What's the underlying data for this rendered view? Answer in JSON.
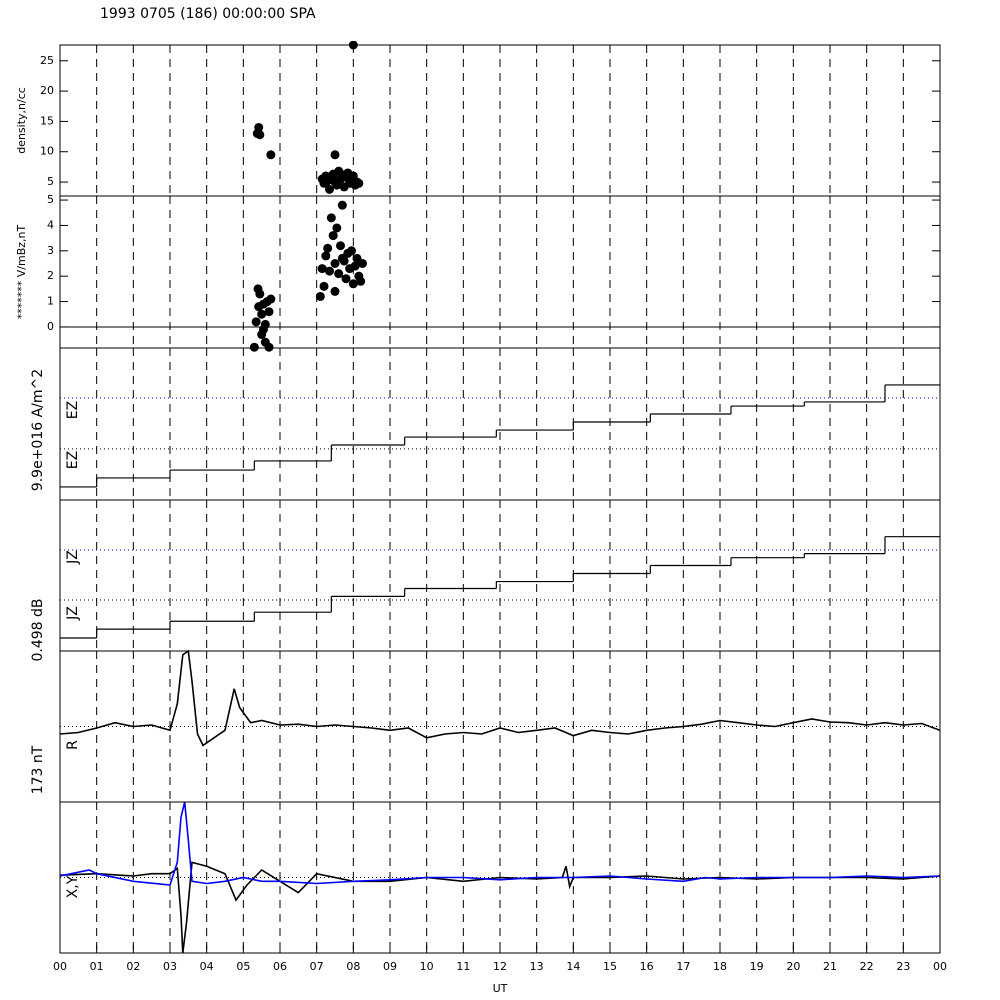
{
  "chart_data": [
    {
      "type": "scatter",
      "title": "1993 0705 (186) 00:00:00 SPA",
      "ylabel": "density,n/cc",
      "xlim": [
        0,
        24
      ],
      "ylim": [
        2.7,
        27.6
      ],
      "yticks": [
        5,
        10,
        15,
        20,
        25
      ],
      "color": "#000000",
      "x": [
        5.38,
        5.42,
        5.45,
        5.75,
        7.5,
        7.15,
        7.2,
        7.25,
        7.3,
        7.35,
        7.4,
        7.45,
        7.5,
        7.55,
        7.6,
        7.65,
        7.7,
        7.75,
        7.8,
        7.85,
        7.9,
        7.95,
        8.0,
        8.05,
        8.1,
        8.15,
        8.0
      ],
      "values": [
        13,
        14,
        12.8,
        9.5,
        9.5,
        5.5,
        4.8,
        6,
        5.2,
        3.8,
        5.7,
        6.3,
        5,
        4.5,
        6.8,
        5.5,
        6.2,
        4.2,
        5.8,
        6.5,
        4.8,
        5.3,
        6,
        4.5,
        5,
        4.8,
        27.6
      ]
    },
    {
      "type": "scatter",
      "ylabel": "******* V/mBz,nT",
      "xlim": [
        0,
        24
      ],
      "ylim": [
        -0.83,
        5.16
      ],
      "yticks": [
        0,
        1,
        2,
        3,
        4,
        5
      ],
      "color": "#000000",
      "reference_lines": [
        {
          "value": 0,
          "color": "#000000",
          "style": "solid"
        }
      ],
      "x": [
        5.3,
        5.35,
        5.4,
        5.42,
        5.45,
        5.5,
        5.5,
        5.55,
        5.6,
        5.6,
        5.65,
        5.7,
        5.7,
        5.75,
        5.55,
        7.1,
        7.15,
        7.2,
        7.25,
        7.3,
        7.35,
        7.4,
        7.45,
        7.5,
        7.55,
        7.6,
        7.65,
        7.7,
        7.75,
        7.8,
        7.85,
        7.9,
        7.95,
        8.0,
        8.05,
        8.1,
        8.15,
        8.2,
        8.25,
        7.5,
        7.7
      ],
      "values": [
        -0.8,
        0.2,
        1.5,
        0.8,
        1.3,
        0.5,
        -0.3,
        0.9,
        0.1,
        -0.6,
        1.0,
        -0.8,
        0.6,
        1.1,
        -0.1,
        1.2,
        2.3,
        1.6,
        2.8,
        3.1,
        2.2,
        4.3,
        3.6,
        2.5,
        3.9,
        2.1,
        3.2,
        4.8,
        2.6,
        1.9,
        2.9,
        2.3,
        3.0,
        1.7,
        2.4,
        2.7,
        2.0,
        1.8,
        2.5,
        1.4,
        2.7
      ]
    },
    {
      "type": "step",
      "scale_label": "9.9e+016 A/m^2",
      "annotations": [
        "EZ",
        "EZ"
      ],
      "xlim": [
        0,
        24
      ],
      "ylim": [
        0,
        100
      ],
      "color": "#000000",
      "reference_lines": [
        {
          "value": 67.1,
          "color": "#0000cc",
          "style": "dotted"
        },
        {
          "value": 33.6,
          "color": "#000000",
          "style": "dotted"
        }
      ],
      "x": [
        0,
        1,
        3,
        5.3,
        7.4,
        9.4,
        11.9,
        14,
        16.1,
        18.3,
        20.3,
        22.5
      ],
      "values": [
        8.6,
        14.5,
        19.7,
        25.7,
        36.2,
        41.4,
        46,
        51.3,
        56.6,
        61.8,
        64.5,
        75.7
      ]
    },
    {
      "type": "step",
      "scale_label": "0.498 dB",
      "annotations": [
        "JZ",
        "JZ"
      ],
      "xlim": [
        0,
        24
      ],
      "ylim": [
        0,
        100
      ],
      "color": "#000000",
      "reference_lines": [
        {
          "value": 66.9,
          "color": "#0000cc",
          "style": "dotted"
        },
        {
          "value": 33.8,
          "color": "#000000",
          "style": "dotted"
        }
      ],
      "x": [
        0,
        1,
        3,
        5.3,
        7.4,
        9.4,
        11.9,
        14,
        16.1,
        18.3,
        20.3,
        22.5
      ],
      "values": [
        8.6,
        14.5,
        19.7,
        25.7,
        36.2,
        41.4,
        46,
        51.3,
        56.6,
        61.8,
        64.5,
        75.7
      ]
    },
    {
      "type": "line",
      "scale_label": "173 nT",
      "annotations": [
        "R"
      ],
      "xlim": [
        0,
        24
      ],
      "ylim": [
        -1,
        1
      ],
      "reference_lines": [
        {
          "value": 0,
          "color": "#000000",
          "style": "dotted"
        }
      ],
      "series": [
        {
          "color": "#000000",
          "x": [
            0,
            0.5,
            1,
            1.5,
            2,
            2.5,
            3,
            3.2,
            3.35,
            3.5,
            3.6,
            3.75,
            3.9,
            4.2,
            4.5,
            4.75,
            4.9,
            5.2,
            5.5,
            6,
            6.5,
            7,
            7.5,
            8,
            8.5,
            9,
            9.5,
            10,
            10.5,
            11,
            11.5,
            12,
            12.5,
            13,
            13.5,
            14,
            14.5,
            15,
            15.5,
            16,
            16.5,
            17,
            17.5,
            18,
            18.5,
            19,
            19.5,
            20,
            20.5,
            21,
            21.5,
            22,
            22.5,
            23,
            23.5,
            24
          ],
          "values": [
            -0.1,
            -0.08,
            -0.02,
            0.05,
            0.0,
            0.02,
            -0.05,
            0.3,
            0.95,
            1.0,
            0.6,
            -0.1,
            -0.25,
            -0.15,
            -0.05,
            0.5,
            0.25,
            0.05,
            0.08,
            0.02,
            0.03,
            0.0,
            0.02,
            0.0,
            -0.02,
            -0.05,
            -0.02,
            -0.15,
            -0.1,
            -0.08,
            -0.1,
            -0.02,
            -0.08,
            -0.05,
            -0.02,
            -0.12,
            -0.05,
            -0.08,
            -0.1,
            -0.05,
            -0.02,
            0.0,
            0.03,
            0.08,
            0.05,
            0.02,
            0.0,
            0.05,
            0.1,
            0.06,
            0.05,
            0.02,
            0.05,
            0.02,
            0.04,
            -0.05
          ]
        }
      ]
    },
    {
      "type": "line",
      "annotations": [
        "X,Y"
      ],
      "xlabel": "UT",
      "xlim": [
        0,
        24
      ],
      "ylim": [
        -1,
        1
      ],
      "xticks": [
        {
          "value": 0,
          "label": "00"
        },
        {
          "value": 1,
          "label": "01"
        },
        {
          "value": 2,
          "label": "02"
        },
        {
          "value": 3,
          "label": "03"
        },
        {
          "value": 4,
          "label": "04"
        },
        {
          "value": 5,
          "label": "05"
        },
        {
          "value": 6,
          "label": "06"
        },
        {
          "value": 7,
          "label": "07"
        },
        {
          "value": 8,
          "label": "08"
        },
        {
          "value": 9,
          "label": "09"
        },
        10,
        11,
        12,
        13,
        14,
        15,
        16,
        17,
        18,
        19,
        20,
        21,
        22,
        23,
        {
          "value": 24,
          "label": "00"
        }
      ],
      "reference_lines": [
        {
          "value": 0,
          "color": "#000000",
          "style": "dotted"
        }
      ],
      "series": [
        {
          "color": "#000000",
          "x": [
            0,
            1,
            2,
            2.5,
            3,
            3.2,
            3.3,
            3.35,
            3.45,
            3.6,
            4,
            4.5,
            4.8,
            5.1,
            5.5,
            6,
            6.5,
            7,
            8,
            9,
            10,
            11,
            12,
            13,
            13.7,
            13.8,
            13.9,
            14,
            15,
            16,
            17,
            18,
            19,
            20,
            21,
            22,
            23,
            24
          ],
          "values": [
            0.03,
            0.05,
            0.02,
            0.05,
            0.05,
            0.12,
            -0.5,
            -1.0,
            -0.6,
            0.2,
            0.15,
            0.05,
            -0.3,
            -0.1,
            0.1,
            -0.05,
            -0.2,
            0.05,
            -0.05,
            -0.05,
            0.0,
            -0.05,
            0.0,
            -0.02,
            0.0,
            0.15,
            -0.12,
            0.0,
            0.0,
            0.02,
            -0.02,
            0.0,
            -0.02,
            0.0,
            0.0,
            0.0,
            -0.02,
            0.02
          ]
        },
        {
          "color": "#0000ff",
          "x": [
            0,
            0.8,
            1,
            2,
            3,
            3.2,
            3.3,
            3.4,
            3.5,
            3.6,
            4,
            4.5,
            5,
            5.5,
            6,
            7,
            8,
            9,
            10,
            11,
            12,
            13,
            14,
            15,
            16,
            17,
            17.6,
            18,
            19,
            20,
            21,
            22,
            23,
            24
          ],
          "values": [
            0.02,
            0.1,
            0.05,
            -0.05,
            -0.1,
            0.2,
            0.8,
            1.0,
            0.5,
            -0.05,
            -0.08,
            -0.05,
            0.0,
            -0.05,
            -0.05,
            -0.08,
            -0.05,
            -0.03,
            0.0,
            0.0,
            -0.03,
            0.0,
            0.0,
            0.02,
            -0.02,
            -0.05,
            0.0,
            -0.02,
            0.0,
            0.0,
            0.0,
            0.02,
            0.0,
            0.02
          ]
        }
      ]
    }
  ]
}
